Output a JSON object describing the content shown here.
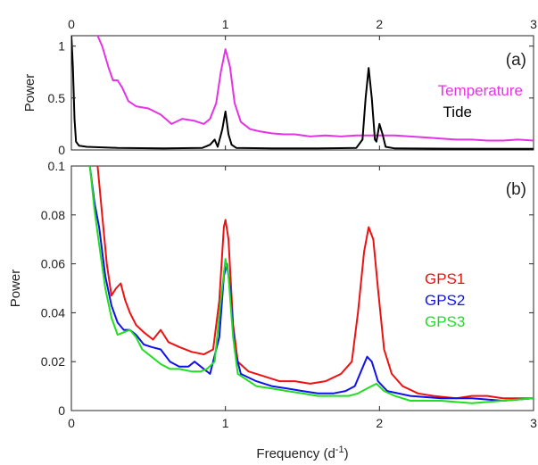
{
  "chart_data": [
    {
      "type": "line",
      "panel_label": "(a)",
      "xlabel": "",
      "ylabel": "Power",
      "xlim": [
        0,
        3
      ],
      "ylim": [
        0,
        1.1
      ],
      "x_ticks": [
        "0",
        "1",
        "2",
        "3"
      ],
      "y_ticks": [
        "0",
        "0.5",
        "1"
      ],
      "x_ticks_position": "top",
      "grid": false,
      "legend_position": "right",
      "series": [
        {
          "name": "Temperature",
          "color": "#e632e6",
          "points": [
            [
              0.17,
              1.1
            ],
            [
              0.2,
              1.0
            ],
            [
              0.24,
              0.8
            ],
            [
              0.27,
              0.67
            ],
            [
              0.3,
              0.67
            ],
            [
              0.33,
              0.6
            ],
            [
              0.37,
              0.47
            ],
            [
              0.42,
              0.42
            ],
            [
              0.5,
              0.4
            ],
            [
              0.58,
              0.34
            ],
            [
              0.65,
              0.25
            ],
            [
              0.72,
              0.3
            ],
            [
              0.8,
              0.28
            ],
            [
              0.86,
              0.25
            ],
            [
              0.9,
              0.3
            ],
            [
              0.94,
              0.45
            ],
            [
              0.97,
              0.75
            ],
            [
              1.0,
              0.97
            ],
            [
              1.03,
              0.8
            ],
            [
              1.06,
              0.45
            ],
            [
              1.1,
              0.27
            ],
            [
              1.16,
              0.2
            ],
            [
              1.22,
              0.18
            ],
            [
              1.3,
              0.16
            ],
            [
              1.38,
              0.15
            ],
            [
              1.45,
              0.15
            ],
            [
              1.55,
              0.13
            ],
            [
              1.65,
              0.14
            ],
            [
              1.75,
              0.13
            ],
            [
              1.85,
              0.14
            ],
            [
              1.92,
              0.14
            ],
            [
              2.0,
              0.14
            ],
            [
              2.1,
              0.14
            ],
            [
              2.2,
              0.13
            ],
            [
              2.3,
              0.12
            ],
            [
              2.4,
              0.11
            ],
            [
              2.5,
              0.1
            ],
            [
              2.6,
              0.1
            ],
            [
              2.7,
              0.09
            ],
            [
              2.8,
              0.09
            ],
            [
              2.9,
              0.1
            ],
            [
              3.0,
              0.09
            ]
          ]
        },
        {
          "name": "Tide",
          "color": "#000000",
          "points": [
            [
              0.0,
              1.1
            ],
            [
              0.01,
              0.8
            ],
            [
              0.02,
              0.3
            ],
            [
              0.03,
              0.08
            ],
            [
              0.05,
              0.04
            ],
            [
              0.1,
              0.03
            ],
            [
              0.3,
              0.02
            ],
            [
              0.6,
              0.015
            ],
            [
              0.85,
              0.02
            ],
            [
              0.9,
              0.05
            ],
            [
              0.93,
              0.1
            ],
            [
              0.95,
              0.03
            ],
            [
              0.98,
              0.2
            ],
            [
              1.0,
              0.37
            ],
            [
              1.02,
              0.15
            ],
            [
              1.04,
              0.05
            ],
            [
              1.07,
              0.02
            ],
            [
              1.3,
              0.015
            ],
            [
              1.6,
              0.015
            ],
            [
              1.85,
              0.02
            ],
            [
              1.89,
              0.1
            ],
            [
              1.91,
              0.5
            ],
            [
              1.93,
              0.79
            ],
            [
              1.95,
              0.5
            ],
            [
              1.97,
              0.1
            ],
            [
              1.98,
              0.08
            ],
            [
              2.0,
              0.25
            ],
            [
              2.02,
              0.15
            ],
            [
              2.04,
              0.03
            ],
            [
              2.1,
              0.015
            ],
            [
              2.5,
              0.012
            ],
            [
              3.0,
              0.01
            ]
          ]
        }
      ]
    },
    {
      "type": "line",
      "panel_label": "(b)",
      "xlabel": "Frequency (d",
      "xlabel_sup": "-1",
      "xlabel_suffix": ")",
      "ylabel": "Power",
      "xlim": [
        0,
        3
      ],
      "ylim": [
        0,
        0.1
      ],
      "x_ticks": [
        "0",
        "1",
        "2",
        "3"
      ],
      "y_ticks": [
        "0",
        "0.02",
        "0.04",
        "0.06",
        "0.08",
        "0.1"
      ],
      "grid": false,
      "legend_position": "right",
      "series": [
        {
          "name": "GPS1",
          "color": "#ee1111",
          "points": [
            [
              0.17,
              0.1
            ],
            [
              0.2,
              0.08
            ],
            [
              0.23,
              0.06
            ],
            [
              0.26,
              0.047
            ],
            [
              0.29,
              0.05
            ],
            [
              0.32,
              0.052
            ],
            [
              0.35,
              0.045
            ],
            [
              0.38,
              0.04
            ],
            [
              0.42,
              0.035
            ],
            [
              0.47,
              0.032
            ],
            [
              0.53,
              0.029
            ],
            [
              0.58,
              0.033
            ],
            [
              0.63,
              0.028
            ],
            [
              0.7,
              0.026
            ],
            [
              0.78,
              0.024
            ],
            [
              0.86,
              0.023
            ],
            [
              0.92,
              0.025
            ],
            [
              0.96,
              0.045
            ],
            [
              0.99,
              0.075
            ],
            [
              1.0,
              0.078
            ],
            [
              1.02,
              0.07
            ],
            [
              1.05,
              0.035
            ],
            [
              1.08,
              0.02
            ],
            [
              1.15,
              0.016
            ],
            [
              1.25,
              0.014
            ],
            [
              1.35,
              0.012
            ],
            [
              1.45,
              0.012
            ],
            [
              1.55,
              0.011
            ],
            [
              1.65,
              0.012
            ],
            [
              1.75,
              0.015
            ],
            [
              1.82,
              0.02
            ],
            [
              1.86,
              0.04
            ],
            [
              1.9,
              0.065
            ],
            [
              1.93,
              0.075
            ],
            [
              1.96,
              0.07
            ],
            [
              1.99,
              0.05
            ],
            [
              2.03,
              0.025
            ],
            [
              2.08,
              0.015
            ],
            [
              2.15,
              0.01
            ],
            [
              2.25,
              0.007
            ],
            [
              2.35,
              0.006
            ],
            [
              2.5,
              0.005
            ],
            [
              2.6,
              0.006
            ],
            [
              2.7,
              0.006
            ],
            [
              2.8,
              0.005
            ],
            [
              2.9,
              0.005
            ],
            [
              3.0,
              0.005
            ]
          ]
        },
        {
          "name": "GPS2",
          "color": "#1111ee",
          "points": [
            [
              0.12,
              0.1
            ],
            [
              0.15,
              0.085
            ],
            [
              0.18,
              0.075
            ],
            [
              0.22,
              0.055
            ],
            [
              0.26,
              0.043
            ],
            [
              0.3,
              0.036
            ],
            [
              0.34,
              0.033
            ],
            [
              0.38,
              0.033
            ],
            [
              0.42,
              0.031
            ],
            [
              0.47,
              0.027
            ],
            [
              0.52,
              0.026
            ],
            [
              0.58,
              0.025
            ],
            [
              0.64,
              0.02
            ],
            [
              0.7,
              0.018
            ],
            [
              0.76,
              0.018
            ],
            [
              0.8,
              0.02
            ],
            [
              0.84,
              0.018
            ],
            [
              0.9,
              0.015
            ],
            [
              0.96,
              0.03
            ],
            [
              0.99,
              0.055
            ],
            [
              1.01,
              0.06
            ],
            [
              1.03,
              0.05
            ],
            [
              1.06,
              0.025
            ],
            [
              1.1,
              0.015
            ],
            [
              1.2,
              0.012
            ],
            [
              1.3,
              0.01
            ],
            [
              1.4,
              0.009
            ],
            [
              1.5,
              0.008
            ],
            [
              1.6,
              0.007
            ],
            [
              1.7,
              0.007
            ],
            [
              1.78,
              0.008
            ],
            [
              1.84,
              0.01
            ],
            [
              1.88,
              0.016
            ],
            [
              1.92,
              0.022
            ],
            [
              1.95,
              0.02
            ],
            [
              1.99,
              0.012
            ],
            [
              2.05,
              0.008
            ],
            [
              2.2,
              0.006
            ],
            [
              2.4,
              0.005
            ],
            [
              2.6,
              0.005
            ],
            [
              2.8,
              0.004
            ],
            [
              3.0,
              0.005
            ]
          ]
        },
        {
          "name": "GPS3",
          "color": "#22dd22",
          "points": [
            [
              0.12,
              0.1
            ],
            [
              0.15,
              0.082
            ],
            [
              0.18,
              0.068
            ],
            [
              0.22,
              0.05
            ],
            [
              0.26,
              0.038
            ],
            [
              0.3,
              0.031
            ],
            [
              0.34,
              0.032
            ],
            [
              0.38,
              0.033
            ],
            [
              0.42,
              0.03
            ],
            [
              0.46,
              0.025
            ],
            [
              0.52,
              0.022
            ],
            [
              0.58,
              0.019
            ],
            [
              0.64,
              0.017
            ],
            [
              0.7,
              0.017
            ],
            [
              0.78,
              0.016
            ],
            [
              0.84,
              0.016
            ],
            [
              0.88,
              0.017
            ],
            [
              0.93,
              0.02
            ],
            [
              0.97,
              0.045
            ],
            [
              1.0,
              0.062
            ],
            [
              1.02,
              0.055
            ],
            [
              1.05,
              0.03
            ],
            [
              1.08,
              0.015
            ],
            [
              1.2,
              0.01
            ],
            [
              1.3,
              0.009
            ],
            [
              1.4,
              0.008
            ],
            [
              1.5,
              0.007
            ],
            [
              1.6,
              0.006
            ],
            [
              1.7,
              0.006
            ],
            [
              1.8,
              0.006
            ],
            [
              1.86,
              0.007
            ],
            [
              1.92,
              0.009
            ],
            [
              1.98,
              0.011
            ],
            [
              2.03,
              0.008
            ],
            [
              2.1,
              0.006
            ],
            [
              2.2,
              0.004
            ],
            [
              2.4,
              0.004
            ],
            [
              2.6,
              0.003
            ],
            [
              2.8,
              0.004
            ],
            [
              3.0,
              0.005
            ]
          ]
        }
      ]
    }
  ]
}
